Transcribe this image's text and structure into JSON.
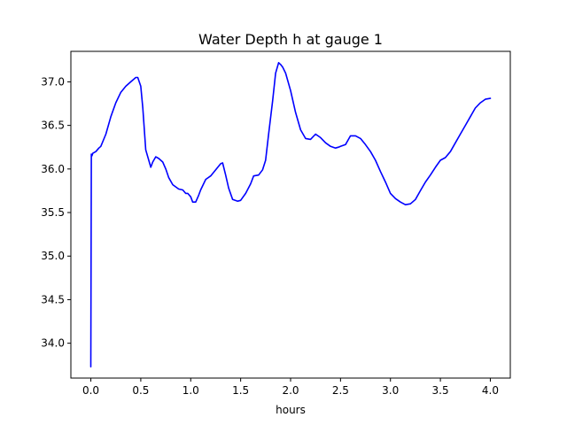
{
  "chart_data": {
    "type": "line",
    "title": "Water Depth h at gauge 1",
    "xlabel": "hours",
    "ylabel": "",
    "xlim": [
      -0.2,
      4.2
    ],
    "ylim": [
      33.6,
      37.35
    ],
    "xticks": [
      0.0,
      0.5,
      1.0,
      1.5,
      2.0,
      2.5,
      3.0,
      3.5,
      4.0
    ],
    "xtick_labels": [
      "0.0",
      "0.5",
      "1.0",
      "1.5",
      "2.0",
      "2.5",
      "3.0",
      "3.5",
      "4.0"
    ],
    "yticks": [
      34.0,
      34.5,
      35.0,
      35.5,
      36.0,
      36.5,
      37.0
    ],
    "ytick_labels": [
      "34.0",
      "34.5",
      "35.0",
      "35.5",
      "36.0",
      "36.5",
      "37.0"
    ],
    "grid": false,
    "legend": "none",
    "series": [
      {
        "color": "#0000ff",
        "x": [
          0.0,
          0.005,
          0.01,
          0.02,
          0.05,
          0.08,
          0.1,
          0.15,
          0.2,
          0.25,
          0.3,
          0.35,
          0.4,
          0.45,
          0.47,
          0.5,
          0.52,
          0.55,
          0.6,
          0.62,
          0.65,
          0.68,
          0.72,
          0.75,
          0.78,
          0.82,
          0.88,
          0.92,
          0.95,
          0.97,
          1.0,
          1.02,
          1.05,
          1.08,
          1.1,
          1.15,
          1.2,
          1.25,
          1.3,
          1.32,
          1.35,
          1.38,
          1.42,
          1.47,
          1.5,
          1.55,
          1.6,
          1.63,
          1.68,
          1.72,
          1.75,
          1.78,
          1.82,
          1.85,
          1.88,
          1.9,
          1.92,
          1.95,
          2.0,
          2.05,
          2.1,
          2.15,
          2.2,
          2.25,
          2.3,
          2.35,
          2.4,
          2.45,
          2.48,
          2.5,
          2.55,
          2.6,
          2.65,
          2.7,
          2.75,
          2.8,
          2.85,
          2.9,
          2.95,
          3.0,
          3.05,
          3.1,
          3.15,
          3.2,
          3.25,
          3.3,
          3.35,
          3.4,
          3.45,
          3.5,
          3.55,
          3.6,
          3.65,
          3.7,
          3.75,
          3.8,
          3.85,
          3.9,
          3.95,
          4.0
        ],
        "y": [
          33.73,
          36.17,
          36.15,
          36.18,
          36.2,
          36.24,
          36.26,
          36.4,
          36.6,
          36.76,
          36.88,
          36.95,
          37.0,
          37.05,
          37.05,
          36.95,
          36.7,
          36.22,
          36.02,
          36.08,
          36.14,
          36.12,
          36.08,
          36.0,
          35.9,
          35.82,
          35.77,
          35.76,
          35.72,
          35.72,
          35.68,
          35.62,
          35.62,
          35.7,
          35.76,
          35.88,
          35.92,
          35.99,
          36.06,
          36.07,
          35.93,
          35.78,
          35.65,
          35.63,
          35.64,
          35.72,
          35.83,
          35.92,
          35.93,
          35.99,
          36.1,
          36.4,
          36.78,
          37.1,
          37.22,
          37.2,
          37.17,
          37.1,
          36.9,
          36.65,
          36.45,
          36.35,
          36.34,
          36.4,
          36.36,
          36.3,
          36.26,
          36.24,
          36.25,
          36.26,
          36.28,
          36.38,
          36.38,
          36.35,
          36.28,
          36.2,
          36.1,
          35.97,
          35.85,
          35.72,
          35.66,
          35.62,
          35.59,
          35.6,
          35.65,
          35.75,
          35.85,
          35.93,
          36.02,
          36.1,
          36.13,
          36.2,
          36.3,
          36.4,
          36.5,
          36.6,
          36.7,
          36.76,
          36.8,
          36.81
        ]
      }
    ]
  }
}
